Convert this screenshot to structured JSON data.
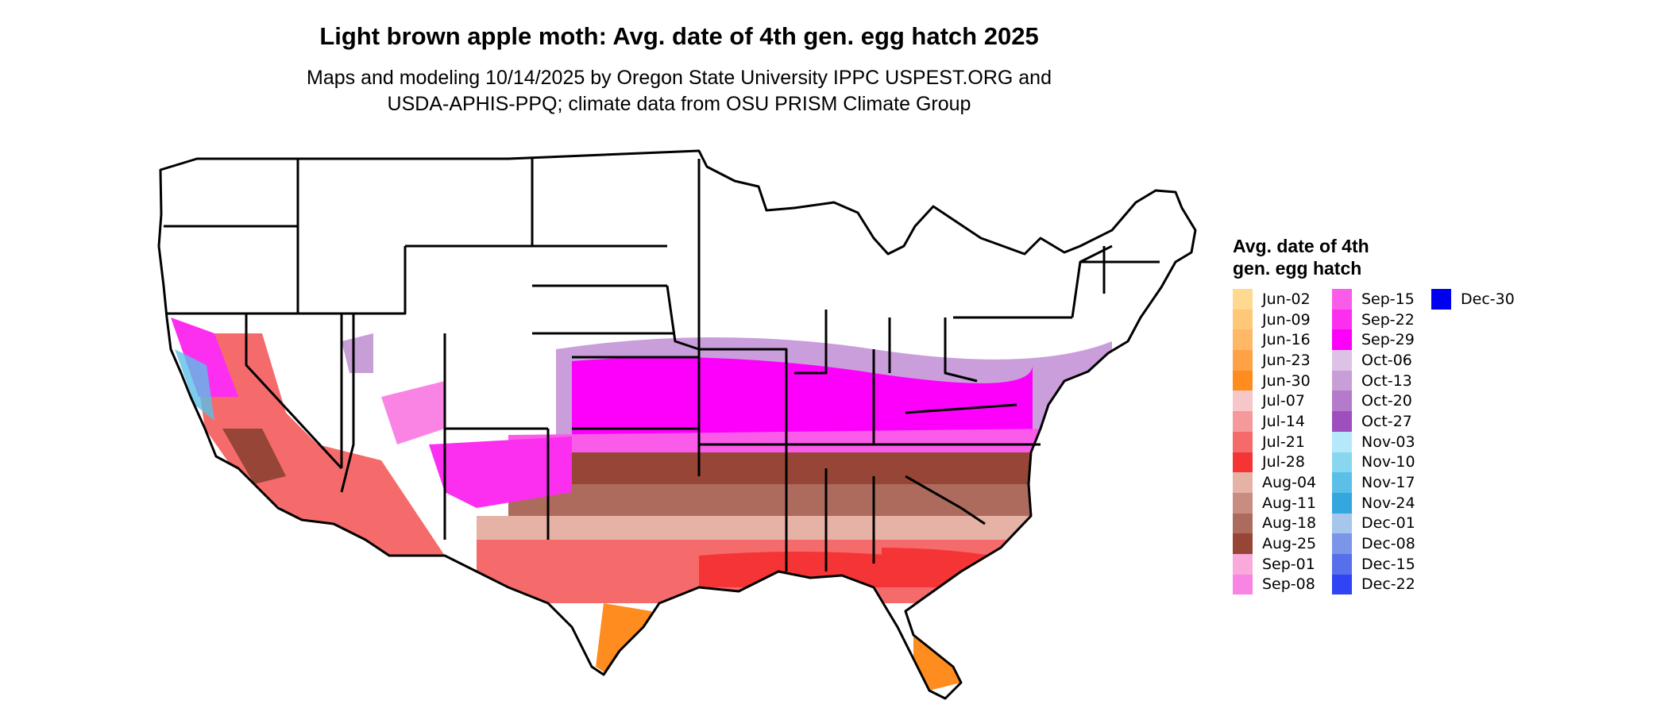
{
  "title": "Light brown apple moth: Avg. date of 4th gen. egg hatch 2025",
  "subtitle_line1": "Maps and modeling 10/14/2025 by Oregon State University IPPC USPEST.ORG and",
  "subtitle_line2": "USDA-APHIS-PPQ; climate data from OSU PRISM Climate Group",
  "legend": {
    "title": "Avg. date of 4th gen. egg hatch",
    "items": [
      {
        "label": "Jun-02",
        "color": "#FFD990"
      },
      {
        "label": "Jun-09",
        "color": "#FFC878"
      },
      {
        "label": "Jun-16",
        "color": "#FFB865"
      },
      {
        "label": "Jun-23",
        "color": "#FFA245"
      },
      {
        "label": "Jun-30",
        "color": "#FF8C1E"
      },
      {
        "label": "Jul-07",
        "color": "#F7C6C8"
      },
      {
        "label": "Jul-14",
        "color": "#F5999B"
      },
      {
        "label": "Jul-21",
        "color": "#F56B6B"
      },
      {
        "label": "Jul-28",
        "color": "#F53535"
      },
      {
        "label": "Aug-04",
        "color": "#E6B2A6"
      },
      {
        "label": "Aug-11",
        "color": "#C98C80"
      },
      {
        "label": "Aug-18",
        "color": "#AD6B5E"
      },
      {
        "label": "Aug-25",
        "color": "#964536"
      },
      {
        "label": "Sep-01",
        "color": "#F9A9DA"
      },
      {
        "label": "Sep-08",
        "color": "#FA84E4"
      },
      {
        "label": "Sep-15",
        "color": "#FA5BE8"
      },
      {
        "label": "Sep-22",
        "color": "#FC2EF0"
      },
      {
        "label": "Sep-29",
        "color": "#FC00FC"
      },
      {
        "label": "Oct-06",
        "color": "#DEC2E6"
      },
      {
        "label": "Oct-13",
        "color": "#C89ED6"
      },
      {
        "label": "Oct-20",
        "color": "#B47BCB"
      },
      {
        "label": "Oct-27",
        "color": "#9E4FBD"
      },
      {
        "label": "Nov-03",
        "color": "#B4E8FA"
      },
      {
        "label": "Nov-10",
        "color": "#89D6F0"
      },
      {
        "label": "Nov-17",
        "color": "#5BBFE8"
      },
      {
        "label": "Nov-24",
        "color": "#33A8DE"
      },
      {
        "label": "Dec-01",
        "color": "#A6C6EC"
      },
      {
        "label": "Dec-08",
        "color": "#7B96E8"
      },
      {
        "label": "Dec-15",
        "color": "#566FEA"
      },
      {
        "label": "Dec-22",
        "color": "#2E44F5"
      },
      {
        "label": "Dec-30",
        "color": "#0000F0"
      }
    ]
  }
}
